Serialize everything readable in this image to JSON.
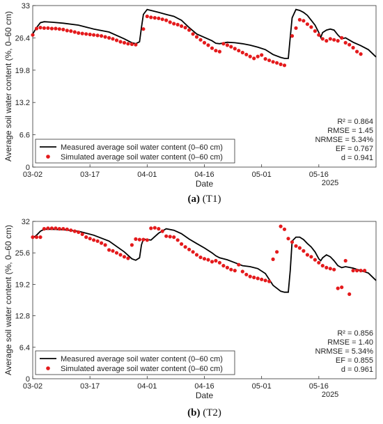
{
  "chart_data": [
    {
      "type": "line",
      "id": "a",
      "caption_prefix": "(a)",
      "caption_text": "(T1)",
      "xlabel": "Date",
      "ylabel": "Average soil water content (%, 0–60 cm)",
      "xlim": [
        0,
        90
      ],
      "ylim": [
        0,
        33
      ],
      "xticks": [
        0,
        15,
        30,
        45,
        60,
        75
      ],
      "xtick_labels": [
        "03-02",
        "03-17",
        "04-01",
        "04-16",
        "05-01",
        "05-16"
      ],
      "yticks": [
        0,
        6.6,
        13.2,
        19.8,
        26.4,
        33
      ],
      "ytick_labels": [
        "0",
        "6.6",
        "13.2",
        "19.8",
        "26.4",
        "33"
      ],
      "year_label": "2025",
      "grid": false,
      "legend_position": "bottom-left",
      "stats": [
        "R² = 0.864",
        "RMSE = 1.45",
        "NRMSE = 5.34%",
        "EF = 0.767",
        "d = 0.941"
      ],
      "series": [
        {
          "name": "Measured average soil water content (0–60 cm)",
          "style": "line",
          "color": "#000000",
          "x": [
            0,
            1,
            2,
            3,
            5,
            8,
            12,
            16,
            20,
            24,
            26,
            27,
            28,
            28.5,
            29,
            30,
            31,
            33,
            35,
            37,
            39,
            41,
            43,
            45,
            47,
            48,
            49,
            51,
            53,
            55,
            57,
            59,
            61,
            63,
            65,
            66,
            67,
            67.5,
            68,
            69,
            70,
            71,
            72,
            73,
            74,
            75,
            75.5,
            76,
            77,
            78,
            79,
            80,
            81,
            82,
            84,
            86,
            88,
            90
          ],
          "y": [
            27.2,
            28.5,
            29.5,
            29.7,
            29.6,
            29.4,
            29.0,
            28.2,
            27.6,
            26.2,
            25.4,
            25.2,
            25.6,
            28.5,
            31.2,
            32.2,
            32.0,
            31.6,
            31.2,
            30.8,
            30.0,
            28.5,
            27.2,
            26.5,
            25.8,
            25.3,
            25.2,
            25.5,
            25.4,
            25.2,
            24.9,
            24.5,
            24.0,
            23.0,
            22.4,
            22.2,
            22.2,
            26.5,
            30.5,
            32.2,
            32.0,
            31.6,
            31.0,
            30.0,
            29.0,
            27.5,
            26.5,
            27.5,
            28.0,
            28.2,
            28.0,
            27.0,
            26.2,
            26.4,
            25.5,
            24.8,
            24.0,
            22.5
          ]
        },
        {
          "name": "Simulated average soil water content (0–60 cm)",
          "style": "scatter",
          "color": "#e41a1c",
          "x": [
            0,
            1,
            2,
            3,
            4,
            5,
            6,
            7,
            8,
            9,
            10,
            11,
            12,
            13,
            14,
            15,
            16,
            17,
            18,
            19,
            20,
            21,
            22,
            23,
            24,
            25,
            26,
            27,
            29,
            30,
            31,
            32,
            33,
            34,
            35,
            36,
            37,
            38,
            39,
            40,
            41,
            42,
            43,
            44,
            45,
            46,
            47,
            48,
            49,
            50,
            51,
            52,
            53,
            54,
            55,
            56,
            57,
            58,
            59,
            60,
            61,
            62,
            63,
            64,
            65,
            66,
            68,
            69,
            70,
            71,
            72,
            73,
            74,
            75,
            76,
            77,
            78,
            79,
            80,
            81,
            82,
            83,
            84,
            85,
            86
          ],
          "y": [
            27.0,
            28.3,
            28.5,
            28.4,
            28.4,
            28.3,
            28.3,
            28.2,
            28.1,
            27.9,
            27.8,
            27.6,
            27.4,
            27.3,
            27.2,
            27.1,
            27.0,
            26.9,
            26.8,
            26.6,
            26.4,
            26.2,
            25.9,
            25.6,
            25.4,
            25.2,
            25.1,
            25.0,
            28.2,
            30.8,
            30.6,
            30.5,
            30.4,
            30.2,
            30.0,
            29.6,
            29.3,
            29.1,
            28.8,
            28.5,
            28.0,
            27.2,
            26.6,
            26.0,
            25.4,
            24.9,
            24.3,
            23.8,
            23.6,
            25.2,
            24.9,
            24.6,
            24.2,
            23.8,
            23.4,
            23.0,
            22.6,
            22.2,
            22.6,
            22.9,
            22.1,
            21.8,
            21.5,
            21.3,
            21.0,
            20.8,
            26.8,
            28.4,
            30.1,
            29.9,
            29.2,
            28.6,
            27.8,
            27.0,
            26.2,
            25.8,
            26.2,
            26.0,
            25.8,
            26.4,
            25.4,
            25.0,
            24.4,
            23.6,
            23.1
          ]
        }
      ]
    },
    {
      "type": "line",
      "id": "b",
      "caption_prefix": "(b)",
      "caption_text": "(T2)",
      "xlabel": "Date",
      "ylabel": "Average soil water content (%, 0–60 cm)",
      "xlim": [
        0,
        90
      ],
      "ylim": [
        0,
        32
      ],
      "xticks": [
        0,
        15,
        30,
        45,
        60,
        75
      ],
      "xtick_labels": [
        "03-02",
        "03-17",
        "04-01",
        "04-16",
        "05-01",
        "05-16"
      ],
      "yticks": [
        0,
        6.4,
        12.8,
        19.2,
        25.6,
        32
      ],
      "ytick_labels": [
        "0",
        "6.4",
        "12.8",
        "19.2",
        "25.6",
        "32"
      ],
      "year_label": "2025",
      "grid": false,
      "legend_position": "bottom-left",
      "stats": [
        "R² = 0.856",
        "RMSE = 1.40",
        "NRMSE = 5.34%",
        "EF = 0.855",
        "d = 0.961"
      ],
      "series": [
        {
          "name": "Measured average soil water content (0–60 cm)",
          "style": "line",
          "color": "#000000",
          "x": [
            0,
            1,
            2,
            3,
            5,
            8,
            12,
            16,
            20,
            24,
            26,
            27,
            28,
            28.5,
            29,
            30,
            31,
            33,
            35,
            37,
            39,
            41,
            43,
            45,
            47,
            48,
            49,
            51,
            53,
            55,
            57,
            59,
            61,
            63,
            65,
            66,
            67,
            67.5,
            68,
            69,
            70,
            71,
            72,
            73,
            74,
            75,
            75.5,
            76,
            77,
            78,
            79,
            80,
            81,
            82,
            84,
            86,
            88,
            90
          ],
          "y": [
            28.6,
            29.2,
            30.0,
            30.4,
            30.4,
            30.3,
            30.0,
            29.2,
            28.0,
            25.8,
            24.4,
            24.1,
            24.6,
            27.2,
            28.4,
            28.3,
            28.2,
            29.6,
            30.5,
            30.2,
            29.5,
            28.4,
            27.5,
            26.6,
            25.6,
            25.0,
            24.6,
            24.2,
            23.6,
            23.0,
            22.8,
            22.4,
            21.4,
            19.0,
            17.8,
            17.6,
            17.6,
            22.0,
            28.0,
            28.8,
            28.8,
            28.3,
            27.5,
            26.8,
            25.8,
            24.4,
            24.0,
            24.6,
            25.2,
            24.8,
            24.0,
            23.0,
            22.6,
            22.8,
            22.5,
            22.0,
            21.5,
            20.0
          ]
        },
        {
          "name": "Simulated average soil water content (0–60 cm)",
          "style": "scatter",
          "color": "#e41a1c",
          "x": [
            0,
            1,
            2,
            3,
            4,
            5,
            6,
            7,
            8,
            9,
            10,
            11,
            12,
            13,
            14,
            15,
            16,
            17,
            18,
            19,
            20,
            21,
            22,
            23,
            24,
            25,
            26,
            27,
            28,
            29,
            30,
            31,
            32,
            33,
            34,
            35,
            36,
            37,
            38,
            39,
            40,
            41,
            42,
            43,
            44,
            45,
            46,
            47,
            48,
            49,
            50,
            51,
            52,
            53,
            54,
            55,
            56,
            57,
            58,
            59,
            60,
            61,
            62,
            63,
            64,
            65,
            66,
            67,
            68,
            69,
            70,
            71,
            72,
            73,
            74,
            75,
            76,
            77,
            78,
            79,
            80,
            81,
            82,
            83,
            84,
            85,
            86,
            87
          ],
          "y": [
            28.8,
            28.8,
            28.8,
            30.5,
            30.6,
            30.6,
            30.6,
            30.5,
            30.5,
            30.4,
            30.2,
            30.0,
            29.8,
            29.4,
            28.8,
            28.5,
            28.2,
            28.0,
            27.6,
            27.2,
            26.2,
            26.0,
            25.6,
            25.2,
            24.8,
            24.5,
            27.2,
            28.4,
            28.3,
            28.3,
            28.2,
            30.6,
            30.7,
            30.5,
            30.0,
            29.0,
            28.9,
            28.8,
            28.2,
            27.4,
            26.8,
            26.3,
            25.8,
            25.2,
            24.7,
            24.4,
            24.2,
            23.8,
            24.0,
            23.6,
            23.0,
            22.6,
            22.2,
            22.0,
            23.2,
            21.8,
            21.2,
            20.8,
            20.6,
            20.4,
            20.2,
            20.0,
            19.8,
            24.3,
            25.8,
            31.0,
            30.4,
            28.5,
            27.8,
            27.0,
            26.6,
            26.0,
            25.2,
            24.8,
            24.2,
            23.6,
            23.0,
            22.6,
            22.4,
            22.2,
            18.4,
            18.6,
            24.0,
            17.2,
            22.0,
            22.0,
            22.0,
            22.0
          ]
        }
      ]
    }
  ]
}
